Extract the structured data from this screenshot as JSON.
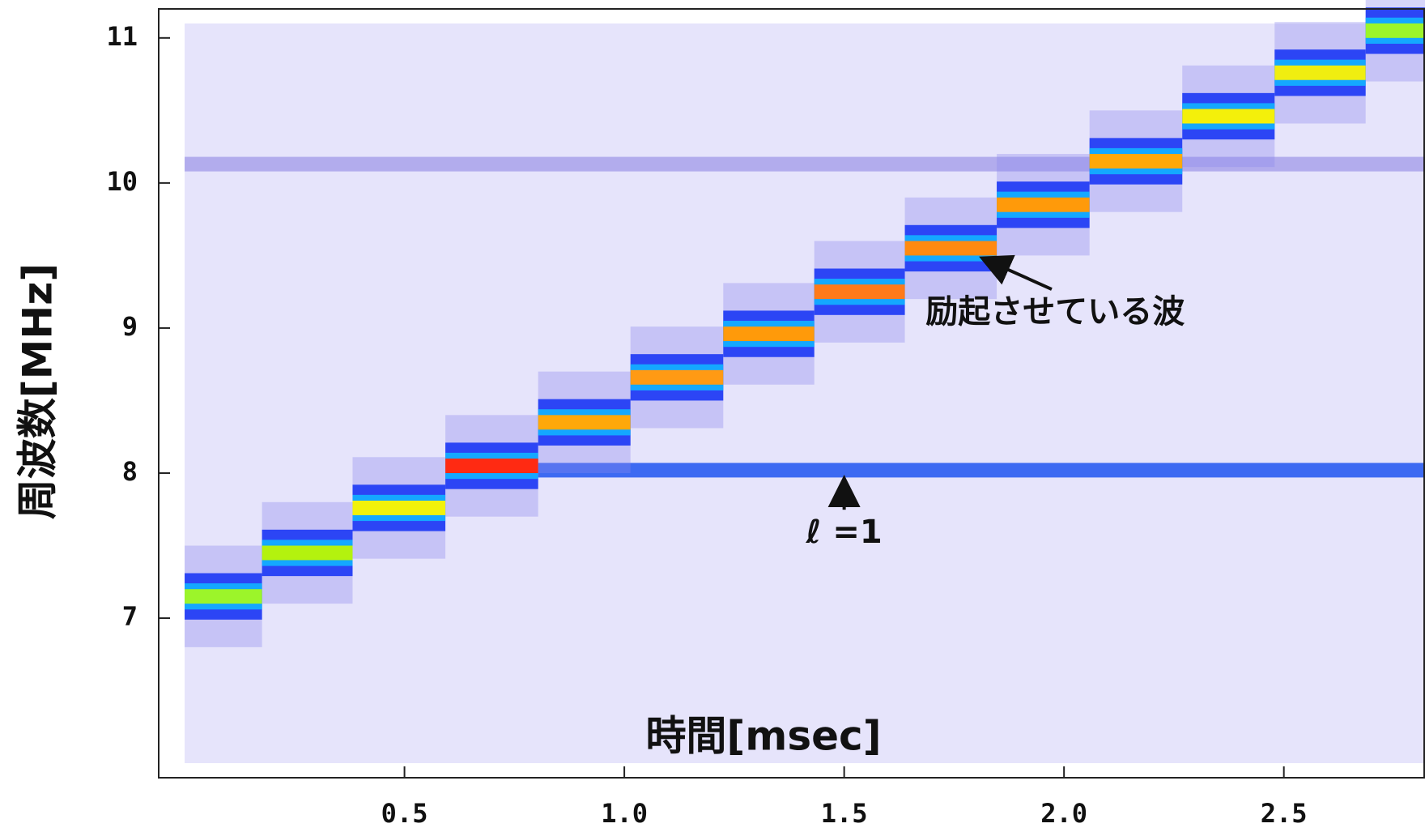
{
  "chart_data": {
    "type": "spectrogram",
    "xlabel": "時間[msec]",
    "ylabel": "周波数[MHz]",
    "xlim": [
      -0.059,
      2.821
    ],
    "ylim": [
      5.9,
      11.2
    ],
    "xticks": [
      0.5,
      {
        "value": 1.0,
        "label": "1.0"
      },
      1.5,
      {
        "value": 2.0,
        "label": "2.0"
      },
      2.5
    ],
    "yticks": [
      7,
      8,
      9,
      10,
      11
    ],
    "background_color": "#e6e4fb",
    "steps": [
      {
        "t0": 0,
        "t1": 0.176,
        "freq": 7.15,
        "color": "#9cf52a"
      },
      {
        "t0": 0.176,
        "t1": 0.382,
        "freq": 7.45,
        "color": "#b4f20e"
      },
      {
        "t0": 0.382,
        "t1": 0.593,
        "freq": 7.76,
        "color": "#f2f20a"
      },
      {
        "t0": 0.593,
        "t1": 0.804,
        "freq": 8.05,
        "color": "#ff2a12"
      },
      {
        "t0": 0.804,
        "t1": 1.014,
        "freq": 8.35,
        "color": "#ffa80a"
      },
      {
        "t0": 1.014,
        "t1": 1.225,
        "freq": 8.66,
        "color": "#ff9a14"
      },
      {
        "t0": 1.225,
        "t1": 1.432,
        "freq": 8.96,
        "color": "#ff9a0a"
      },
      {
        "t0": 1.432,
        "t1": 1.638,
        "freq": 9.25,
        "color": "#ff7a1a"
      },
      {
        "t0": 1.638,
        "t1": 1.847,
        "freq": 9.55,
        "color": "#ff8a10"
      },
      {
        "t0": 1.847,
        "t1": 2.058,
        "freq": 9.85,
        "color": "#ff9a0a"
      },
      {
        "t0": 2.058,
        "t1": 2.269,
        "freq": 10.15,
        "color": "#ffa808"
      },
      {
        "t0": 2.269,
        "t1": 2.479,
        "freq": 10.46,
        "color": "#f4f00a"
      },
      {
        "t0": 2.479,
        "t1": 2.686,
        "freq": 10.76,
        "color": "#f0ee10"
      },
      {
        "t0": 2.686,
        "t1": 2.821,
        "freq": 11.05,
        "color": "#9cf52a"
      }
    ],
    "lines": [
      {
        "t0": 0.804,
        "t1": 2.821,
        "freq": 8.02,
        "color": "#1e55f0"
      },
      {
        "t0": 0,
        "t1": 2.821,
        "freq": 10.13,
        "color": "#a8a2ea"
      }
    ],
    "annotations": [
      {
        "text": "励起させている波",
        "x": 1.98,
        "y": 9.1,
        "arrow_x": 1.82,
        "arrow_y": 9.53
      },
      {
        "text": "ℓ =1",
        "x": 1.5,
        "y": 7.58,
        "arrow_x": 1.5,
        "arrow_y": 8.0
      }
    ]
  }
}
